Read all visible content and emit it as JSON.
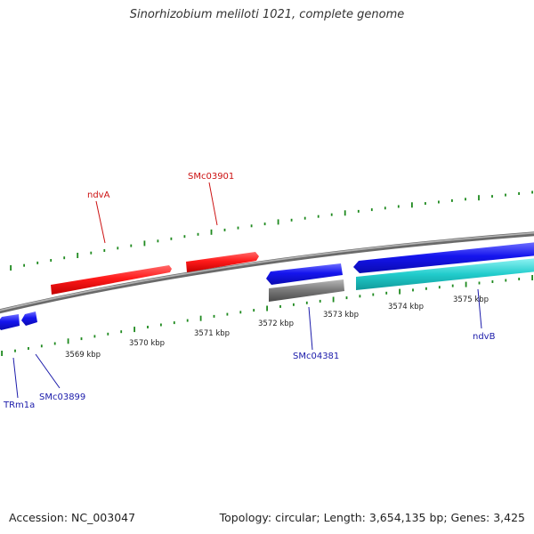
{
  "title": "Sinorhizobium meliloti 1021, complete genome",
  "footer": {
    "accession": "Accession: NC_003047",
    "summary": "Topology: circular; Length: 3,654,135 bp; Genes: 3,425"
  },
  "colors": {
    "backbone": "#8a8a8a",
    "forward_gene": "#ee1111",
    "reverse_gene": "#1a1aee",
    "rna_gene": "#1a1aee",
    "pseudo_gene": "#6e6e6e",
    "cds_feature": "#22cccc",
    "tick": "#1f8a1f",
    "forward_label": "#cc1111",
    "reverse_label": "#1a1aaa"
  },
  "scale": {
    "unit": "kbp",
    "labels": [
      "3569 kbp",
      "3570 kbp",
      "3571 kbp",
      "3572 kbp",
      "3573 kbp",
      "3574 kbp",
      "3575 kbp"
    ]
  },
  "genes": [
    {
      "name": "ndvA",
      "strand": "forward"
    },
    {
      "name": "SMc03901",
      "strand": "forward"
    },
    {
      "name": "TRm1a",
      "strand": "reverse"
    },
    {
      "name": "SMc03899",
      "strand": "reverse"
    },
    {
      "name": "SMc04381",
      "strand": "reverse"
    },
    {
      "name": "ndvB",
      "strand": "reverse"
    }
  ]
}
